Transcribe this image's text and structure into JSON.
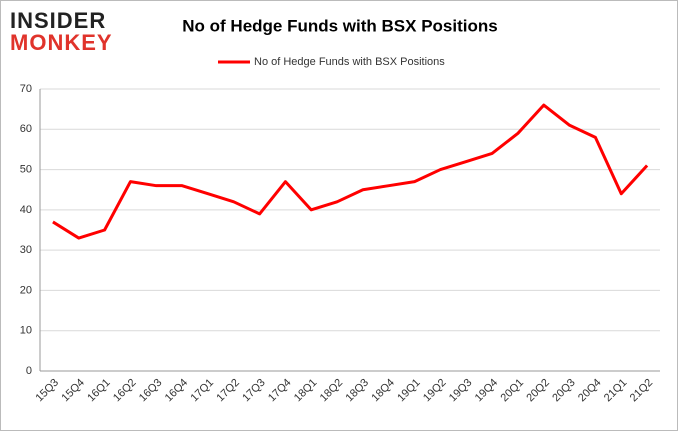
{
  "logo": {
    "line1": "INSIDER",
    "line2": "MONKEY"
  },
  "chart_data": {
    "type": "line",
    "title": "No of Hedge Funds with BSX Positions",
    "categories": [
      "15Q3",
      "15Q4",
      "16Q1",
      "16Q2",
      "16Q3",
      "16Q4",
      "17Q1",
      "17Q2",
      "17Q3",
      "17Q4",
      "18Q1",
      "18Q2",
      "18Q3",
      "18Q4",
      "19Q1",
      "19Q2",
      "19Q3",
      "19Q4",
      "20Q1",
      "20Q2",
      "20Q3",
      "20Q4",
      "21Q1",
      "21Q2"
    ],
    "series": [
      {
        "name": "No of Hedge Funds with BSX Positions",
        "color": "#ff0000",
        "values": [
          37,
          33,
          35,
          47,
          46,
          46,
          44,
          42,
          39,
          47,
          40,
          42,
          45,
          46,
          47,
          50,
          52,
          54,
          59,
          66,
          61,
          58,
          44,
          51
        ]
      }
    ],
    "ylim": [
      0,
      70
    ],
    "yticks": [
      0,
      10,
      20,
      30,
      40,
      50,
      60,
      70
    ],
    "grid": true,
    "legend": "top"
  }
}
